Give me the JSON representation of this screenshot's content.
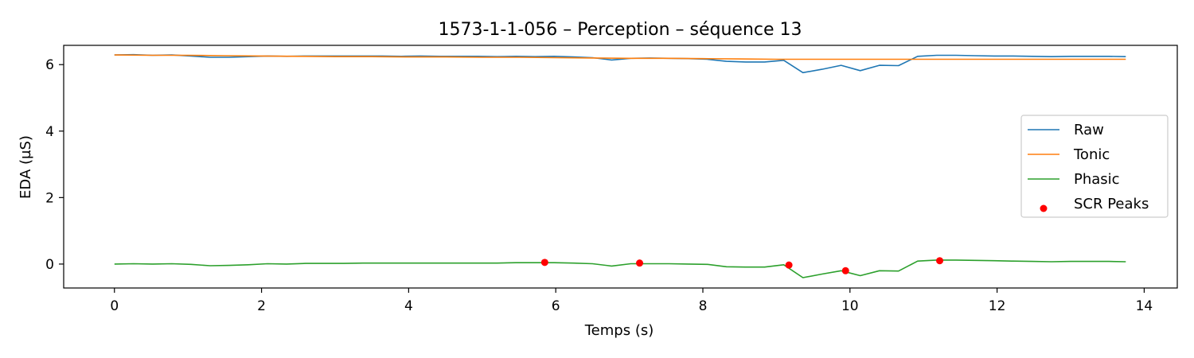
{
  "chart_data": {
    "type": "line",
    "title": "1573-1-1-056 – Perception – séquence 13",
    "xlabel": "Temps (s)",
    "ylabel": "EDA (µS)",
    "xlim": [
      -0.69,
      14.45
    ],
    "ylim": [
      -0.72,
      6.58
    ],
    "xticks": [
      0,
      2,
      4,
      6,
      8,
      10,
      12,
      14
    ],
    "yticks": [
      0,
      2,
      4,
      6
    ],
    "grid": false,
    "legend_position": "center-right",
    "colors": {
      "Raw": "#1f77b4",
      "Tonic": "#ff7f0e",
      "Phasic": "#2ca02c",
      "SCR Peaks": "#ff0000"
    },
    "series": [
      {
        "name": "Raw",
        "kind": "line",
        "x": [
          0,
          0.26,
          0.52,
          0.78,
          1.04,
          1.3,
          1.56,
          1.82,
          2.08,
          2.34,
          2.6,
          2.86,
          3.12,
          3.38,
          3.64,
          3.9,
          4.16,
          4.42,
          4.68,
          4.94,
          5.2,
          5.46,
          5.72,
          5.98,
          6.24,
          6.5,
          6.76,
          7.02,
          7.28,
          7.54,
          7.8,
          8.06,
          8.32,
          8.58,
          8.84,
          9.1,
          9.36,
          9.62,
          9.88,
          10.14,
          10.4,
          10.66,
          10.92,
          11.18,
          11.44,
          11.7,
          11.96,
          12.22,
          12.48,
          12.74,
          13.0,
          13.26,
          13.52,
          13.75
        ],
        "y": [
          6.29,
          6.3,
          6.28,
          6.29,
          6.26,
          6.22,
          6.22,
          6.24,
          6.26,
          6.25,
          6.26,
          6.26,
          6.26,
          6.26,
          6.26,
          6.25,
          6.26,
          6.25,
          6.25,
          6.25,
          6.24,
          6.25,
          6.24,
          6.25,
          6.23,
          6.21,
          6.14,
          6.19,
          6.2,
          6.19,
          6.18,
          6.16,
          6.1,
          6.08,
          6.08,
          6.13,
          5.76,
          5.86,
          5.98,
          5.82,
          5.98,
          5.97,
          6.25,
          6.28,
          6.28,
          6.27,
          6.26,
          6.26,
          6.25,
          6.24,
          6.25,
          6.25,
          6.25,
          6.24
        ]
      },
      {
        "name": "Tonic",
        "kind": "line",
        "x": [
          0,
          0.5,
          1.0,
          1.5,
          2.0,
          2.5,
          3.0,
          3.5,
          4.0,
          4.5,
          5.0,
          5.5,
          6.0,
          6.5,
          7.0,
          7.5,
          8.0,
          8.5,
          9.0,
          9.5,
          10.0,
          10.5,
          11.0,
          11.5,
          12.0,
          12.5,
          13.0,
          13.75
        ],
        "y": [
          6.29,
          6.28,
          6.28,
          6.27,
          6.26,
          6.25,
          6.24,
          6.24,
          6.23,
          6.23,
          6.22,
          6.22,
          6.21,
          6.2,
          6.19,
          6.19,
          6.18,
          6.17,
          6.16,
          6.16,
          6.16,
          6.16,
          6.16,
          6.16,
          6.16,
          6.16,
          6.16,
          6.16
        ]
      },
      {
        "name": "Phasic",
        "kind": "line",
        "x": [
          0,
          0.26,
          0.52,
          0.78,
          1.04,
          1.3,
          1.56,
          1.82,
          2.08,
          2.34,
          2.6,
          2.86,
          3.12,
          3.38,
          3.64,
          3.9,
          4.16,
          4.42,
          4.68,
          4.94,
          5.2,
          5.46,
          5.72,
          5.98,
          6.24,
          6.5,
          6.76,
          7.02,
          7.28,
          7.54,
          7.8,
          8.06,
          8.32,
          8.58,
          8.84,
          9.1,
          9.36,
          9.62,
          9.88,
          10.14,
          10.4,
          10.66,
          10.92,
          11.18,
          11.44,
          11.7,
          11.96,
          12.22,
          12.48,
          12.74,
          13.0,
          13.26,
          13.52,
          13.75
        ],
        "y": [
          0.0,
          0.01,
          0.0,
          0.01,
          -0.01,
          -0.05,
          -0.04,
          -0.02,
          0.01,
          0.0,
          0.02,
          0.02,
          0.02,
          0.03,
          0.03,
          0.03,
          0.03,
          0.03,
          0.03,
          0.03,
          0.03,
          0.04,
          0.04,
          0.04,
          0.03,
          0.01,
          -0.06,
          0.01,
          0.01,
          0.01,
          0.0,
          -0.01,
          -0.08,
          -0.09,
          -0.09,
          -0.02,
          -0.41,
          -0.3,
          -0.2,
          -0.35,
          -0.2,
          -0.21,
          0.09,
          0.12,
          0.12,
          0.11,
          0.1,
          0.09,
          0.08,
          0.07,
          0.08,
          0.08,
          0.08,
          0.07
        ]
      },
      {
        "name": "SCR Peaks",
        "kind": "scatter",
        "x": [
          5.85,
          7.14,
          9.17,
          9.94,
          11.22
        ],
        "y": [
          0.05,
          0.03,
          -0.03,
          -0.2,
          0.1
        ]
      }
    ]
  }
}
